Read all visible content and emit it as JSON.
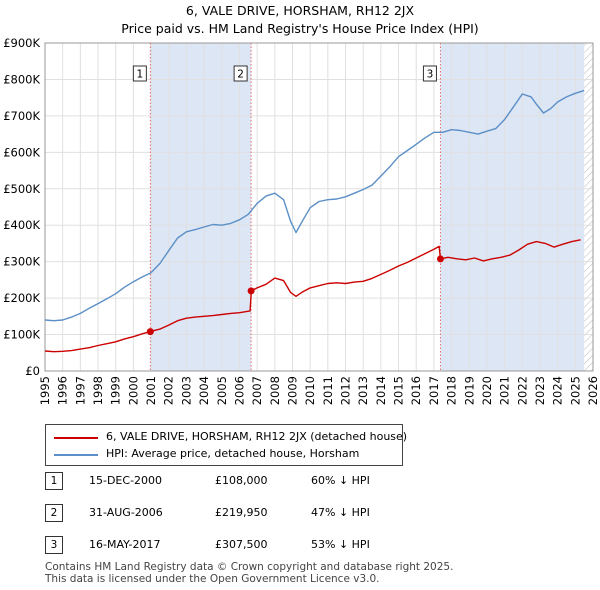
{
  "title_line1": "6, VALE DRIVE, HORSHAM, RH12 2JX",
  "title_line2": "Price paid vs. HM Land Registry's House Price Index (HPI)",
  "colors": {
    "property_line": "#cc0000",
    "hpi_line": "#5b8fc7",
    "shade": "#dde6f4",
    "grid": "#e0e0e0",
    "marker_vline": "#e07070",
    "hatch": "#c4c4c4"
  },
  "chart_data": {
    "type": "line",
    "title": "6, VALE DRIVE, HORSHAM, RH12 2JX",
    "subtitle": "Price paid vs. HM Land Registry's House Price Index (HPI)",
    "xlabel": "",
    "ylabel": "",
    "xlim": [
      1995,
      2026
    ],
    "ylim": [
      0,
      900000
    ],
    "grid": true,
    "y_ticks": [
      0,
      100000,
      200000,
      300000,
      400000,
      500000,
      600000,
      700000,
      800000,
      900000
    ],
    "y_tick_labels": [
      "£0",
      "£100K",
      "£200K",
      "£300K",
      "£400K",
      "£500K",
      "£600K",
      "£700K",
      "£800K",
      "£900K"
    ],
    "x_ticks": [
      1995,
      1996,
      1997,
      1998,
      1999,
      2000,
      2001,
      2002,
      2003,
      2004,
      2005,
      2006,
      2007,
      2008,
      2009,
      2010,
      2011,
      2012,
      2013,
      2014,
      2015,
      2016,
      2017,
      2018,
      2019,
      2020,
      2021,
      2022,
      2023,
      2024,
      2025,
      2026
    ],
    "x_tick_labels": [
      "1995",
      "1996",
      "1997",
      "1998",
      "1999",
      "2000",
      "2001",
      "2002",
      "2003",
      "2004",
      "2005",
      "2006",
      "2007",
      "2008",
      "2009",
      "2010",
      "2011",
      "2012",
      "2013",
      "2014",
      "2015",
      "2016",
      "2017",
      "2018",
      "2019",
      "2020",
      "2021",
      "2022",
      "2023",
      "2024",
      "2025",
      "2026"
    ],
    "shaded_ranges": [
      [
        2000.96,
        2006.66
      ],
      [
        2017.37,
        2025.5
      ]
    ],
    "hatched_from": 2025.5,
    "series": [
      {
        "name": "6, VALE DRIVE, HORSHAM, RH12 2JX (detached house)",
        "color": "#cc0000",
        "x": [
          1995.0,
          1995.5,
          1996.0,
          1996.5,
          1997.0,
          1997.5,
          1998.0,
          1998.5,
          1999.0,
          1999.5,
          2000.0,
          2000.5,
          2000.96,
          2001.5,
          2002.0,
          2002.5,
          2003.0,
          2003.5,
          2004.0,
          2004.5,
          2005.0,
          2005.5,
          2006.0,
          2006.6,
          2006.67,
          2007.0,
          2007.5,
          2008.0,
          2008.5,
          2008.9,
          2009.2,
          2009.6,
          2010.0,
          2010.5,
          2011.0,
          2011.5,
          2012.0,
          2012.5,
          2013.0,
          2013.5,
          2014.0,
          2014.5,
          2015.0,
          2015.5,
          2016.0,
          2016.5,
          2017.0,
          2017.3,
          2017.37,
          2017.8,
          2018.3,
          2018.8,
          2019.3,
          2019.8,
          2020.3,
          2020.8,
          2021.3,
          2021.8,
          2022.3,
          2022.8,
          2023.3,
          2023.8,
          2024.3,
          2024.8,
          2025.3
        ],
        "values": [
          55000,
          53000,
          54000,
          56000,
          60000,
          64000,
          70000,
          75000,
          80000,
          88000,
          94000,
          102000,
          108000,
          115000,
          126000,
          138000,
          145000,
          148000,
          150000,
          152000,
          155000,
          158000,
          160000,
          165000,
          219950,
          228000,
          238000,
          255000,
          248000,
          215000,
          205000,
          218000,
          228000,
          234000,
          240000,
          242000,
          240000,
          244000,
          246000,
          254000,
          265000,
          276000,
          288000,
          298000,
          310000,
          322000,
          334000,
          342000,
          307500,
          312000,
          308000,
          305000,
          310000,
          302000,
          308000,
          312000,
          318000,
          332000,
          348000,
          355000,
          350000,
          340000,
          348000,
          355000,
          360000
        ]
      },
      {
        "name": "HPI: Average price, detached house, Horsham",
        "color": "#5b8fc7",
        "x": [
          1995.0,
          1995.5,
          1996.0,
          1996.5,
          1997.0,
          1997.5,
          1998.0,
          1998.5,
          1999.0,
          1999.5,
          2000.0,
          2000.5,
          2001.0,
          2001.5,
          2002.0,
          2002.5,
          2003.0,
          2003.5,
          2004.0,
          2004.5,
          2005.0,
          2005.5,
          2006.0,
          2006.5,
          2007.0,
          2007.5,
          2008.0,
          2008.5,
          2008.9,
          2009.2,
          2009.6,
          2010.0,
          2010.5,
          2011.0,
          2011.5,
          2012.0,
          2012.5,
          2013.0,
          2013.5,
          2014.0,
          2014.5,
          2015.0,
          2015.5,
          2016.0,
          2016.5,
          2017.0,
          2017.5,
          2018.0,
          2018.5,
          2019.0,
          2019.5,
          2020.0,
          2020.5,
          2021.0,
          2021.5,
          2022.0,
          2022.5,
          2022.8,
          2023.2,
          2023.6,
          2024.0,
          2024.5,
          2025.0,
          2025.5
        ],
        "values": [
          140000,
          138000,
          140000,
          148000,
          158000,
          172000,
          185000,
          198000,
          212000,
          230000,
          245000,
          258000,
          270000,
          295000,
          330000,
          365000,
          382000,
          388000,
          395000,
          402000,
          400000,
          405000,
          415000,
          430000,
          460000,
          480000,
          488000,
          470000,
          410000,
          380000,
          415000,
          448000,
          465000,
          470000,
          472000,
          478000,
          488000,
          498000,
          510000,
          535000,
          560000,
          588000,
          605000,
          622000,
          640000,
          655000,
          655000,
          662000,
          660000,
          655000,
          650000,
          658000,
          665000,
          690000,
          725000,
          760000,
          752000,
          732000,
          708000,
          720000,
          738000,
          752000,
          762000,
          770000
        ]
      }
    ],
    "sale_markers": [
      {
        "label": "1",
        "x": 2000.96,
        "value": 108000
      },
      {
        "label": "2",
        "x": 2006.66,
        "value": 219950
      },
      {
        "label": "3",
        "x": 2017.37,
        "value": 307500
      }
    ]
  },
  "legend": {
    "property_label": "6, VALE DRIVE, HORSHAM, RH12 2JX (detached house)",
    "hpi_label": "HPI: Average price, detached house, Horsham"
  },
  "sales": [
    {
      "num": "1",
      "date": "15-DEC-2000",
      "price": "£108,000",
      "hpi": "60% ↓ HPI"
    },
    {
      "num": "2",
      "date": "31-AUG-2006",
      "price": "£219,950",
      "hpi": "47% ↓ HPI"
    },
    {
      "num": "3",
      "date": "16-MAY-2017",
      "price": "£307,500",
      "hpi": "53% ↓ HPI"
    }
  ],
  "footer": {
    "line1": "Contains HM Land Registry data © Crown copyright and database right 2025.",
    "line2": "This data is licensed under the Open Government Licence v3.0."
  }
}
